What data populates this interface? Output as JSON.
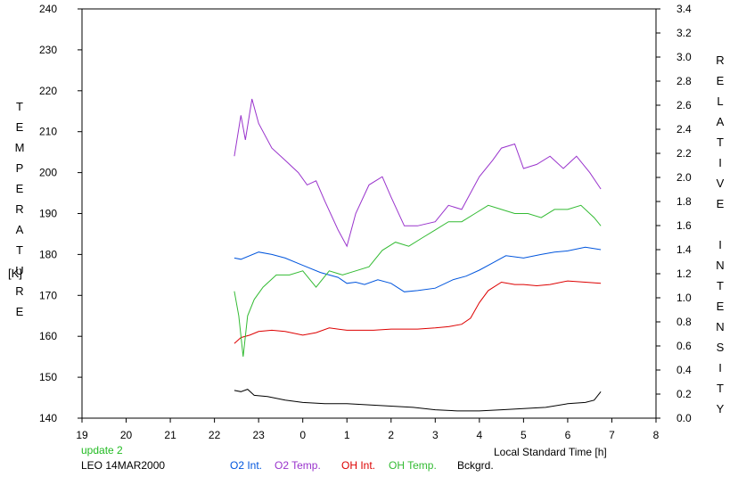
{
  "chart_data": {
    "type": "line",
    "xlabel": "Local Standard Time [h]",
    "x_ticks": [
      "19",
      "20",
      "21",
      "22",
      "23",
      "0",
      "1",
      "2",
      "3",
      "4",
      "5",
      "6",
      "7",
      "8"
    ],
    "left_axis": {
      "label_letters": [
        "T",
        "E",
        "M",
        "P",
        "E",
        "R",
        "A",
        "T",
        "U",
        "R",
        "E"
      ],
      "unit": "[K]",
      "ylim": [
        140,
        240
      ],
      "ticks": [
        "140",
        "150",
        "160",
        "170",
        "180",
        "190",
        "200",
        "210",
        "220",
        "230",
        "240"
      ]
    },
    "right_axis": {
      "label_letters": [
        "R",
        "E",
        "L",
        "A",
        "T",
        "I",
        "V",
        "E",
        "",
        "I",
        "N",
        "T",
        "E",
        "N",
        "S",
        "I",
        "T",
        "Y"
      ],
      "ylim": [
        0.0,
        3.4
      ],
      "ticks": [
        "0.0",
        "0.2",
        "0.4",
        "0.6",
        "0.8",
        "1.0",
        "1.2",
        "1.4",
        "1.6",
        "1.8",
        "2.0",
        "2.2",
        "2.4",
        "2.6",
        "2.8",
        "3.0",
        "3.2",
        "3.4"
      ]
    },
    "notes": {
      "update": "update 2",
      "site_date": "LEO 14MAR2000"
    },
    "series": [
      {
        "name": "O2 Int.",
        "color": "#0055dd",
        "axis": "right",
        "x": [
          22.45,
          22.6,
          23.0,
          23.3,
          23.6,
          24.0,
          24.4,
          24.8,
          25.0,
          25.2,
          25.4,
          25.7,
          26.0,
          26.3,
          26.6,
          27.0,
          27.4,
          27.7,
          28.0,
          28.3,
          28.6,
          29.0,
          29.4,
          29.7,
          30.0,
          30.4,
          30.75
        ],
        "y": [
          1.33,
          1.32,
          1.38,
          1.36,
          1.33,
          1.27,
          1.21,
          1.17,
          1.12,
          1.13,
          1.11,
          1.15,
          1.12,
          1.05,
          1.06,
          1.08,
          1.15,
          1.18,
          1.23,
          1.29,
          1.35,
          1.33,
          1.36,
          1.38,
          1.39,
          1.42,
          1.4
        ]
      },
      {
        "name": "O2 Temp.",
        "color": "#9933cc",
        "axis": "left",
        "x": [
          22.45,
          22.6,
          22.7,
          22.85,
          23.0,
          23.3,
          23.6,
          23.9,
          24.1,
          24.3,
          24.5,
          24.8,
          25.0,
          25.2,
          25.5,
          25.8,
          26.0,
          26.3,
          26.6,
          27.0,
          27.3,
          27.6,
          28.0,
          28.3,
          28.5,
          28.8,
          29.0,
          29.3,
          29.6,
          29.9,
          30.2,
          30.5,
          30.75
        ],
        "y": [
          204,
          214,
          208,
          218,
          212,
          206,
          203,
          200,
          197,
          198,
          193,
          186,
          182,
          190,
          197,
          199,
          194,
          187,
          187,
          188,
          192,
          191,
          199,
          203,
          206,
          207,
          201,
          202,
          204,
          201,
          204,
          200,
          196
        ]
      },
      {
        "name": "OH Int.",
        "color": "#dd0000",
        "axis": "right",
        "x": [
          22.45,
          22.6,
          22.8,
          23.0,
          23.3,
          23.6,
          24.0,
          24.3,
          24.6,
          25.0,
          25.3,
          25.6,
          26.0,
          26.3,
          26.6,
          27.0,
          27.3,
          27.6,
          27.8,
          28.0,
          28.2,
          28.5,
          28.8,
          29.0,
          29.3,
          29.6,
          30.0,
          30.4,
          30.75
        ],
        "y": [
          0.62,
          0.67,
          0.69,
          0.72,
          0.73,
          0.72,
          0.69,
          0.71,
          0.75,
          0.73,
          0.73,
          0.73,
          0.74,
          0.74,
          0.74,
          0.75,
          0.76,
          0.78,
          0.83,
          0.96,
          1.06,
          1.13,
          1.11,
          1.11,
          1.1,
          1.11,
          1.14,
          1.13,
          1.12
        ]
      },
      {
        "name": "OH Temp.",
        "color": "#33bb33",
        "axis": "left",
        "x": [
          22.45,
          22.55,
          22.65,
          22.75,
          22.9,
          23.1,
          23.4,
          23.7,
          24.0,
          24.3,
          24.6,
          24.9,
          25.2,
          25.5,
          25.8,
          26.1,
          26.4,
          26.7,
          27.0,
          27.3,
          27.6,
          27.9,
          28.2,
          28.5,
          28.8,
          29.1,
          29.4,
          29.7,
          30.0,
          30.3,
          30.6,
          30.75
        ],
        "y": [
          171,
          165,
          155,
          165,
          169,
          172,
          175,
          175,
          176,
          172,
          176,
          175,
          176,
          177,
          181,
          183,
          182,
          184,
          186,
          188,
          188,
          190,
          192,
          191,
          190,
          190,
          189,
          191,
          191,
          192,
          189,
          187
        ]
      },
      {
        "name": "Bckgrd.",
        "color": "#000000",
        "axis": "right",
        "x": [
          22.45,
          22.6,
          22.75,
          22.9,
          23.2,
          23.6,
          24.0,
          24.5,
          25.0,
          25.5,
          26.0,
          26.5,
          27.0,
          27.5,
          28.0,
          28.5,
          29.0,
          29.5,
          30.0,
          30.4,
          30.6,
          30.75
        ],
        "y": [
          0.23,
          0.22,
          0.24,
          0.19,
          0.18,
          0.15,
          0.13,
          0.12,
          0.12,
          0.11,
          0.1,
          0.09,
          0.07,
          0.06,
          0.06,
          0.07,
          0.08,
          0.09,
          0.12,
          0.13,
          0.15,
          0.22
        ]
      }
    ]
  }
}
